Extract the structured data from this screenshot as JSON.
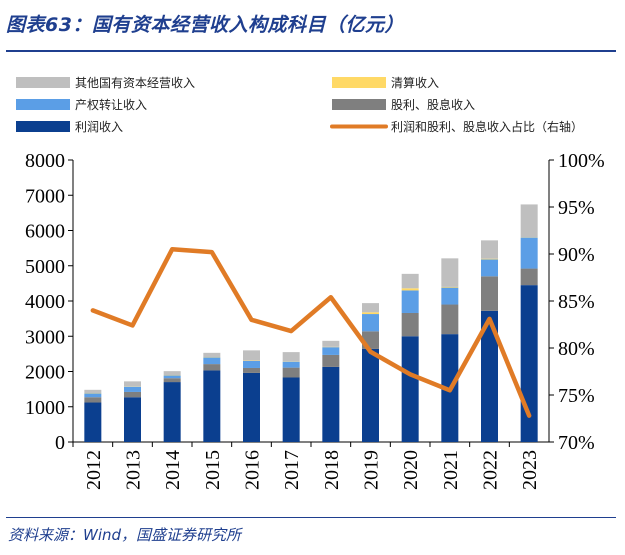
{
  "figure_title": "图表63：国有资本经营收入构成科目（亿元）",
  "source_note": "资料来源：Wind，国盛证券研究所",
  "chart_data": {
    "type": "bar",
    "stacked": true,
    "categories": [
      "2012",
      "2013",
      "2014",
      "2015",
      "2016",
      "2017",
      "2018",
      "2019",
      "2020",
      "2021",
      "2022",
      "2023"
    ],
    "series": [
      {
        "name": "利润收入",
        "color": "#0b3f8f",
        "values": [
          1120,
          1270,
          1700,
          2030,
          1960,
          1830,
          2130,
          2640,
          3000,
          3060,
          3720,
          4450
        ]
      },
      {
        "name": "股利、股息收入",
        "color": "#7f7f7f",
        "values": [
          150,
          150,
          110,
          180,
          140,
          280,
          340,
          500,
          660,
          840,
          980,
          470
        ]
      },
      {
        "name": "产权转让收入",
        "color": "#5b9ee6",
        "values": [
          110,
          150,
          80,
          190,
          200,
          170,
          220,
          490,
          640,
          480,
          480,
          880
        ]
      },
      {
        "name": "清算收入",
        "color": "#ffd966",
        "values": [
          10,
          10,
          10,
          10,
          10,
          10,
          10,
          50,
          60,
          20,
          20,
          10
        ]
      },
      {
        "name": "其他国有资本经营收入",
        "color": "#bfbfbf",
        "values": [
          90,
          140,
          110,
          120,
          290,
          260,
          170,
          260,
          410,
          810,
          520,
          930
        ]
      }
    ],
    "line_series": {
      "name": "利润和股利、股息收入占比（右轴）",
      "color": "#e07b26",
      "values": [
        84.0,
        82.4,
        90.5,
        90.2,
        83.0,
        81.8,
        85.4,
        79.6,
        77.2,
        75.5,
        83.1,
        72.8
      ]
    },
    "legend_order": [
      "其他国有资本经营收入",
      "清算收入",
      "产权转让收入",
      "股利、股息收入",
      "利润收入",
      "利润和股利、股息收入占比（右轴）"
    ],
    "y_left": {
      "min": 0,
      "max": 8000,
      "ticks": [
        "0",
        "1000",
        "2000",
        "3000",
        "4000",
        "5000",
        "6000",
        "7000",
        "8000"
      ]
    },
    "y_right": {
      "min": 70,
      "max": 100,
      "ticks": [
        "70%",
        "75%",
        "80%",
        "85%",
        "90%",
        "95%",
        "100%"
      ]
    }
  }
}
